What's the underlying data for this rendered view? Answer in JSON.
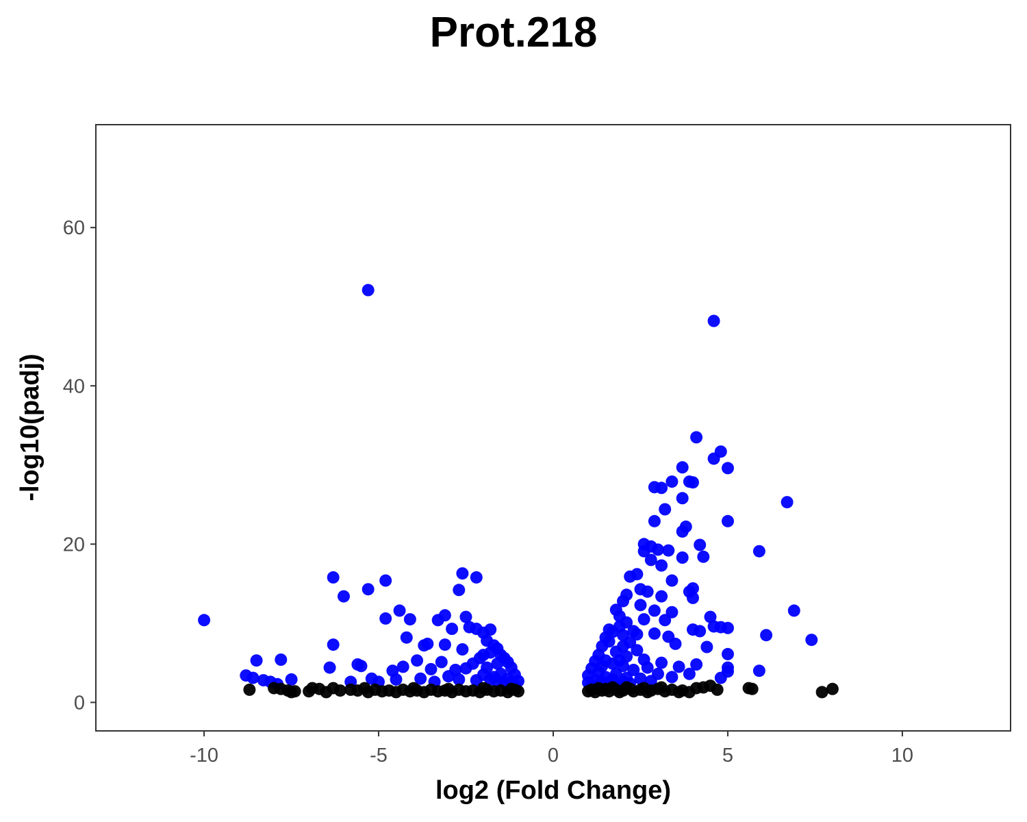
{
  "chart_data": {
    "type": "scatter",
    "title": "Prot.218",
    "xlabel": "log2 (Fold Change)",
    "ylabel": "-log10(padj)",
    "xlim": [
      -13.1,
      13.1
    ],
    "ylim": [
      -3.6,
      73
    ],
    "xticks": [
      -10,
      -5,
      0,
      5,
      10
    ],
    "xtick_labels": [
      "-10",
      "-5",
      "0",
      "5",
      "10"
    ],
    "yticks": [
      0,
      20,
      40,
      60
    ],
    "ytick_labels": [
      "0",
      "20",
      "40",
      "60"
    ],
    "grid": false,
    "legend": "none",
    "colors": {
      "significant": "#0000ff",
      "not_significant": "#000000",
      "panel_border": "#333333"
    },
    "series": [
      {
        "color": "#0000ff",
        "points": [
          [
            -10.0,
            10.4
          ],
          [
            -5.3,
            52.1
          ],
          [
            -6.3,
            15.8
          ],
          [
            -6.0,
            13.4
          ],
          [
            -5.3,
            14.3
          ],
          [
            -4.8,
            15.4
          ],
          [
            -4.8,
            10.6
          ],
          [
            -4.4,
            11.6
          ],
          [
            -4.1,
            10.5
          ],
          [
            -4.2,
            8.2
          ],
          [
            -3.7,
            7.2
          ],
          [
            -3.6,
            7.4
          ],
          [
            -3.3,
            10.4
          ],
          [
            -3.1,
            11.0
          ],
          [
            -3.1,
            7.3
          ],
          [
            -2.9,
            9.3
          ],
          [
            -2.7,
            14.2
          ],
          [
            -2.6,
            16.3
          ],
          [
            -2.5,
            10.8
          ],
          [
            -2.4,
            9.5
          ],
          [
            -2.2,
            15.8
          ],
          [
            -2.2,
            9.3
          ],
          [
            -2.0,
            8.8
          ],
          [
            -1.8,
            9.2
          ],
          [
            -2.6,
            6.7
          ],
          [
            -1.9,
            7.8
          ],
          [
            -1.7,
            7.2
          ],
          [
            -1.6,
            6.8
          ],
          [
            -1.5,
            6.0
          ],
          [
            -1.3,
            5.1
          ],
          [
            -1.2,
            4.4
          ],
          [
            -1.1,
            3.5
          ],
          [
            -1.0,
            2.7
          ],
          [
            -1.4,
            5.6
          ],
          [
            -1.8,
            6.3
          ],
          [
            -2.0,
            6.0
          ],
          [
            -2.1,
            5.6
          ],
          [
            -1.6,
            4.9
          ],
          [
            -1.9,
            4.4
          ],
          [
            -2.3,
            4.9
          ],
          [
            -2.5,
            4.3
          ],
          [
            -2.8,
            4.1
          ],
          [
            -3.2,
            5.1
          ],
          [
            -3.5,
            4.2
          ],
          [
            -3.9,
            5.3
          ],
          [
            -4.3,
            4.5
          ],
          [
            -4.6,
            4.0
          ],
          [
            -5.0,
            2.6
          ],
          [
            -5.5,
            4.6
          ],
          [
            -5.6,
            4.8
          ],
          [
            -5.2,
            3.0
          ],
          [
            -6.4,
            4.4
          ],
          [
            -6.3,
            7.3
          ],
          [
            -5.8,
            2.6
          ],
          [
            -8.5,
            5.3
          ],
          [
            -7.8,
            5.4
          ],
          [
            -7.5,
            2.9
          ],
          [
            -8.8,
            3.4
          ],
          [
            -8.6,
            3.1
          ],
          [
            -8.3,
            2.8
          ],
          [
            -8.1,
            2.6
          ],
          [
            -7.9,
            2.3
          ],
          [
            -1.3,
            3.0
          ],
          [
            -1.5,
            3.6
          ],
          [
            -1.7,
            3.2
          ],
          [
            -2.0,
            3.5
          ],
          [
            -2.2,
            2.8
          ],
          [
            -2.7,
            2.9
          ],
          [
            -3.0,
            3.3
          ],
          [
            -3.4,
            2.6
          ],
          [
            -3.8,
            3.0
          ],
          [
            -4.5,
            2.9
          ],
          [
            -1.1,
            2.2
          ],
          [
            -1.2,
            2.5
          ],
          [
            -1.4,
            2.4
          ],
          [
            -1.6,
            2.7
          ],
          [
            -1.8,
            2.9
          ],
          [
            4.6,
            48.2
          ],
          [
            4.1,
            33.5
          ],
          [
            4.8,
            31.7
          ],
          [
            4.6,
            30.8
          ],
          [
            5.0,
            29.6
          ],
          [
            3.7,
            29.7
          ],
          [
            3.4,
            27.9
          ],
          [
            3.9,
            27.9
          ],
          [
            4.0,
            27.8
          ],
          [
            2.9,
            27.2
          ],
          [
            3.1,
            27.1
          ],
          [
            3.7,
            25.8
          ],
          [
            6.7,
            25.3
          ],
          [
            3.2,
            24.4
          ],
          [
            3.8,
            22.2
          ],
          [
            3.7,
            21.6
          ],
          [
            2.9,
            22.9
          ],
          [
            5.0,
            22.9
          ],
          [
            2.6,
            20.0
          ],
          [
            2.8,
            19.7
          ],
          [
            2.6,
            19.1
          ],
          [
            3.0,
            19.3
          ],
          [
            3.3,
            19.2
          ],
          [
            4.2,
            19.9
          ],
          [
            5.9,
            19.1
          ],
          [
            3.7,
            18.3
          ],
          [
            4.3,
            18.4
          ],
          [
            2.8,
            18.0
          ],
          [
            3.1,
            17.3
          ],
          [
            3.4,
            15.4
          ],
          [
            2.4,
            16.2
          ],
          [
            2.2,
            15.9
          ],
          [
            2.5,
            14.3
          ],
          [
            2.7,
            14.0
          ],
          [
            3.1,
            13.4
          ],
          [
            4.0,
            14.4
          ],
          [
            4.0,
            13.2
          ],
          [
            3.9,
            14.0
          ],
          [
            2.1,
            13.6
          ],
          [
            2.0,
            12.8
          ],
          [
            2.5,
            12.3
          ],
          [
            1.8,
            11.7
          ],
          [
            2.9,
            11.6
          ],
          [
            3.4,
            11.4
          ],
          [
            4.5,
            10.8
          ],
          [
            6.9,
            11.6
          ],
          [
            1.9,
            10.9
          ],
          [
            2.6,
            10.5
          ],
          [
            3.2,
            10.4
          ],
          [
            4.6,
            9.6
          ],
          [
            4.8,
            9.5
          ],
          [
            5.0,
            9.4
          ],
          [
            6.1,
            8.5
          ],
          [
            7.4,
            7.9
          ],
          [
            4.0,
            9.2
          ],
          [
            4.2,
            9.0
          ],
          [
            2.3,
            9.0
          ],
          [
            2.9,
            8.7
          ],
          [
            3.3,
            8.3
          ],
          [
            3.5,
            7.4
          ],
          [
            4.4,
            7.0
          ],
          [
            5.0,
            6.1
          ],
          [
            4.1,
            4.8
          ],
          [
            5.0,
            4.4
          ],
          [
            5.0,
            3.9
          ],
          [
            5.9,
            4.0
          ],
          [
            4.8,
            3.1
          ],
          [
            2.6,
            5.4
          ],
          [
            3.1,
            5.0
          ],
          [
            3.6,
            4.5
          ],
          [
            1.7,
            8.9
          ],
          [
            1.5,
            8.2
          ],
          [
            1.4,
            7.1
          ],
          [
            1.3,
            6.0
          ],
          [
            1.2,
            5.2
          ],
          [
            1.1,
            4.3
          ],
          [
            1.0,
            3.4
          ],
          [
            1.0,
            2.5
          ],
          [
            1.6,
            7.7
          ],
          [
            2.0,
            8.5
          ],
          [
            2.2,
            7.6
          ],
          [
            2.4,
            6.6
          ],
          [
            1.8,
            6.4
          ],
          [
            2.1,
            5.8
          ],
          [
            1.5,
            5.3
          ],
          [
            1.7,
            4.9
          ],
          [
            2.0,
            4.6
          ],
          [
            2.3,
            4.1
          ],
          [
            2.7,
            4.4
          ],
          [
            3.0,
            3.6
          ],
          [
            1.3,
            3.8
          ],
          [
            1.5,
            3.2
          ],
          [
            1.8,
            3.6
          ],
          [
            2.1,
            3.1
          ],
          [
            2.5,
            3.0
          ],
          [
            3.4,
            3.2
          ],
          [
            3.9,
            3.6
          ],
          [
            1.2,
            2.8
          ],
          [
            1.4,
            2.6
          ],
          [
            1.7,
            2.9
          ],
          [
            2.0,
            2.6
          ],
          [
            2.8,
            2.7
          ],
          [
            1.1,
            2.1
          ],
          [
            1.3,
            2.3
          ],
          [
            1.6,
            2.4
          ],
          [
            1.9,
            2.2
          ],
          [
            2.2,
            2.4
          ],
          [
            1.9,
            9.6
          ],
          [
            2.1,
            10.1
          ],
          [
            1.6,
            9.2
          ],
          [
            2.4,
            8.6
          ],
          [
            2.0,
            7.1
          ],
          [
            1.4,
            4.6
          ],
          [
            1.9,
            5.3
          ]
        ]
      },
      {
        "color": "#000000",
        "points": [
          [
            -8.7,
            1.6
          ],
          [
            -8.0,
            1.8
          ],
          [
            -7.8,
            1.7
          ],
          [
            -7.6,
            1.5
          ],
          [
            -7.5,
            1.3
          ],
          [
            -7.4,
            1.4
          ],
          [
            -7.0,
            1.4
          ],
          [
            -6.9,
            1.8
          ],
          [
            -6.7,
            1.7
          ],
          [
            -6.3,
            1.8
          ],
          [
            -6.1,
            1.5
          ],
          [
            -5.8,
            1.6
          ],
          [
            -5.6,
            1.5
          ],
          [
            -5.3,
            1.3
          ],
          [
            -5.1,
            1.6
          ],
          [
            -4.9,
            1.4
          ],
          [
            -4.7,
            1.5
          ],
          [
            -4.5,
            1.3
          ],
          [
            -4.3,
            1.6
          ],
          [
            -4.1,
            1.4
          ],
          [
            -3.9,
            1.5
          ],
          [
            -3.7,
            1.3
          ],
          [
            -3.5,
            1.6
          ],
          [
            -3.3,
            1.4
          ],
          [
            -3.1,
            1.5
          ],
          [
            -2.9,
            1.3
          ],
          [
            -2.7,
            1.6
          ],
          [
            -2.5,
            1.4
          ],
          [
            -2.3,
            1.5
          ],
          [
            -2.1,
            1.3
          ],
          [
            -1.9,
            1.6
          ],
          [
            -1.7,
            1.4
          ],
          [
            -1.5,
            1.5
          ],
          [
            -1.3,
            1.3
          ],
          [
            -1.1,
            1.6
          ],
          [
            -1.0,
            1.4
          ],
          [
            -4.0,
            1.8
          ],
          [
            -3.0,
            1.7
          ],
          [
            -2.0,
            1.8
          ],
          [
            -1.2,
            1.7
          ],
          [
            -6.5,
            1.3
          ],
          [
            -5.4,
            1.8
          ],
          [
            1.0,
            1.4
          ],
          [
            1.1,
            1.6
          ],
          [
            1.2,
            1.3
          ],
          [
            1.4,
            1.5
          ],
          [
            1.5,
            1.7
          ],
          [
            1.6,
            1.4
          ],
          [
            1.8,
            1.6
          ],
          [
            1.9,
            1.3
          ],
          [
            2.0,
            1.5
          ],
          [
            2.2,
            1.7
          ],
          [
            2.3,
            1.4
          ],
          [
            2.5,
            1.6
          ],
          [
            2.7,
            1.3
          ],
          [
            2.8,
            1.5
          ],
          [
            3.0,
            1.7
          ],
          [
            3.2,
            1.4
          ],
          [
            3.4,
            1.6
          ],
          [
            3.6,
            1.3
          ],
          [
            3.7,
            1.5
          ],
          [
            3.9,
            1.3
          ],
          [
            4.1,
            1.8
          ],
          [
            4.3,
            1.9
          ],
          [
            4.5,
            2.1
          ],
          [
            4.7,
            1.6
          ],
          [
            1.3,
            1.8
          ],
          [
            1.7,
            1.9
          ],
          [
            2.1,
            1.9
          ],
          [
            2.6,
            1.8
          ],
          [
            3.1,
            1.9
          ],
          [
            5.6,
            1.8
          ],
          [
            5.7,
            1.7
          ],
          [
            7.7,
            1.3
          ],
          [
            8.0,
            1.7
          ]
        ]
      }
    ]
  }
}
